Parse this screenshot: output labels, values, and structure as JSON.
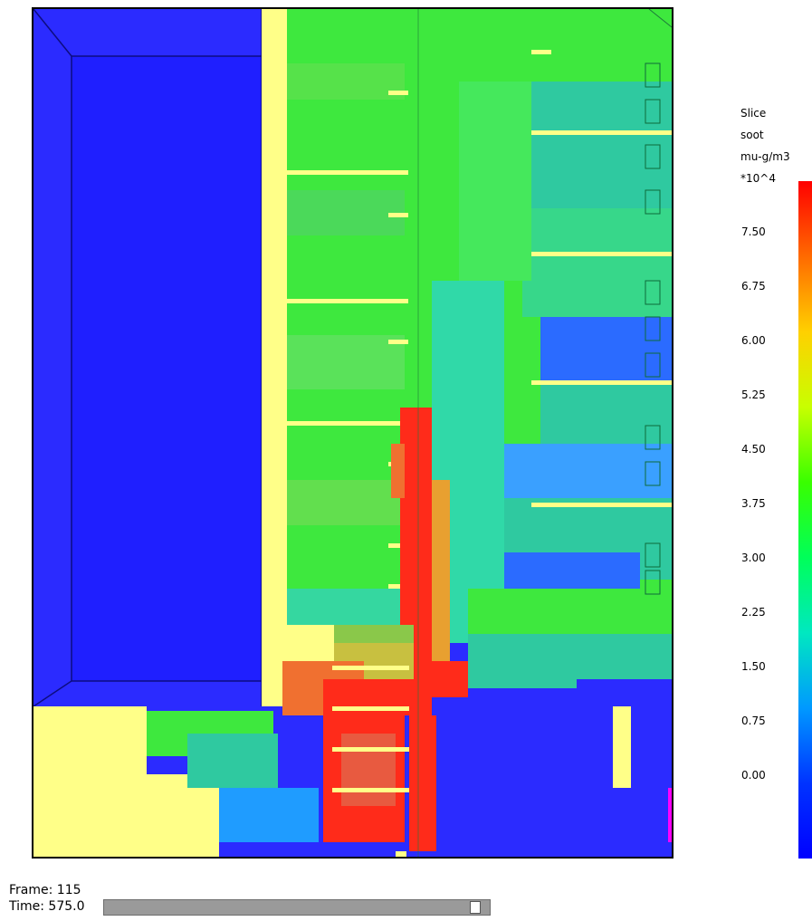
{
  "colorbar": {
    "header": [
      "Slice",
      "soot",
      "mu-g/m3",
      "*10^4"
    ],
    "ticks": [
      "7.50",
      "6.75",
      "6.00",
      "5.25",
      "4.50",
      "3.75",
      "3.00",
      "2.25",
      "1.50",
      "0.75",
      "0.00"
    ],
    "gradient": [
      "#ff0000",
      "#ff6a00",
      "#ffd000",
      "#c8ff00",
      "#39ff00",
      "#00ff59",
      "#00e8c0",
      "#0099ff",
      "#0033ff",
      "#0000ff"
    ]
  },
  "playback": {
    "frame_text": "Frame: 115",
    "time_text": "Time: 575.0",
    "slider_fraction": 0.975
  },
  "colors": {
    "blue": "#2b2bff",
    "yellow": "#ffff88",
    "green": "#3ee83e",
    "teal": "#2fc9a0",
    "red": "#ff2b1a",
    "orange": "#f07030"
  }
}
